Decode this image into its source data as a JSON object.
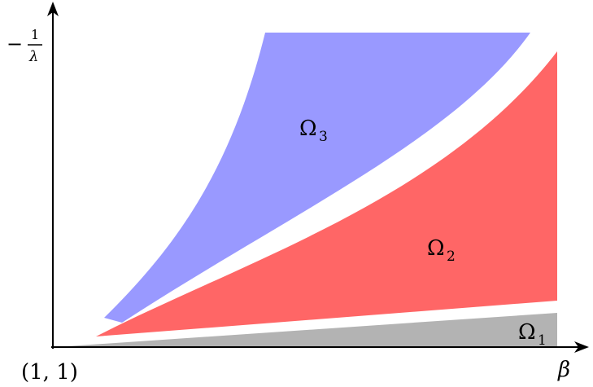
{
  "axes": {
    "y_label_sign": "−",
    "y_label_numerator": "1",
    "y_label_denominator": "λ",
    "x_label": "β",
    "origin_label": "(1, 1)"
  },
  "regions": [
    {
      "id": "omega1",
      "symbol": "Ω",
      "subscript": "1",
      "color": "#b3b3b3"
    },
    {
      "id": "omega2",
      "symbol": "Ω",
      "subscript": "2",
      "color": "#ff6666"
    },
    {
      "id": "omega3",
      "symbol": "Ω",
      "subscript": "3",
      "color": "#9999ff"
    }
  ],
  "colors": {
    "axis": "#000000",
    "background": "#ffffff"
  }
}
